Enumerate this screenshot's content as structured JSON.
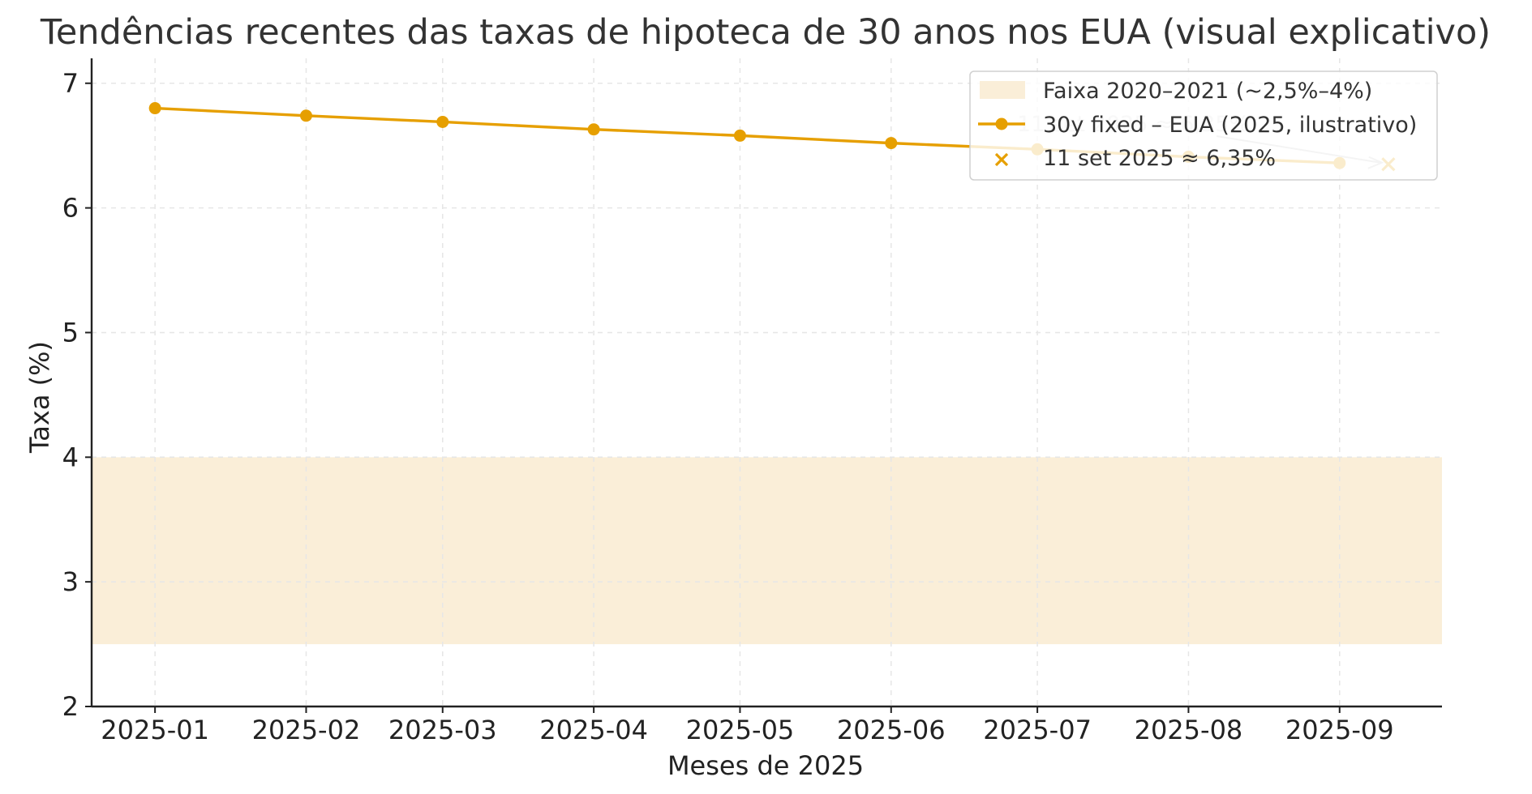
{
  "chart_data": {
    "type": "line",
    "title": "Tendências recentes das taxas de hipoteca de 30 anos nos EUA (visual explicativo)",
    "xlabel": "Meses de 2025",
    "ylabel": "Taxa (%)",
    "categories": [
      "2025-01",
      "2025-02",
      "2025-03",
      "2025-04",
      "2025-05",
      "2025-06",
      "2025-07",
      "2025-08",
      "2025-09"
    ],
    "x_ticks": [
      "2025-01",
      "2025-02",
      "2025-03",
      "2025-04",
      "2025-05",
      "2025-06",
      "2025-07",
      "2025-08",
      "2025-09"
    ],
    "y_ticks": [
      2,
      3,
      4,
      5,
      6,
      7
    ],
    "ylim": [
      2,
      7.2
    ],
    "xlim": [
      "2024-12-19",
      "2025-09-22"
    ],
    "grid": true,
    "legend_position": "top-right",
    "band": {
      "name": "Faixa 2020–2021 (~2,5%–4%)",
      "low": 2.5,
      "high": 4.0,
      "color": "#faeed8"
    },
    "series": [
      {
        "name": "30y fixed – EUA (2025, ilustrativo)",
        "color": "#e69f00",
        "marker": "circle",
        "points": [
          {
            "x": "2025-01-01",
            "y": 6.8
          },
          {
            "x": "2025-02-01",
            "y": 6.74
          },
          {
            "x": "2025-03-01",
            "y": 6.69
          },
          {
            "x": "2025-04-01",
            "y": 6.63
          },
          {
            "x": "2025-05-01",
            "y": 6.58
          },
          {
            "x": "2025-06-01",
            "y": 6.52
          },
          {
            "x": "2025-07-01",
            "y": 6.47
          },
          {
            "x": "2025-08-01",
            "y": 6.41
          },
          {
            "x": "2025-09-01",
            "y": 6.36
          }
        ]
      },
      {
        "name": "11 set 2025 ≈ 6,35%",
        "color": "#e69f00",
        "marker": "x",
        "points": [
          {
            "x": "2025-09-11",
            "y": 6.35
          }
        ]
      }
    ],
    "annotation": {
      "text": "11 set 2025 ≈ 6,35%",
      "target": {
        "x": "2025-09-11",
        "y": 6.35
      }
    }
  }
}
